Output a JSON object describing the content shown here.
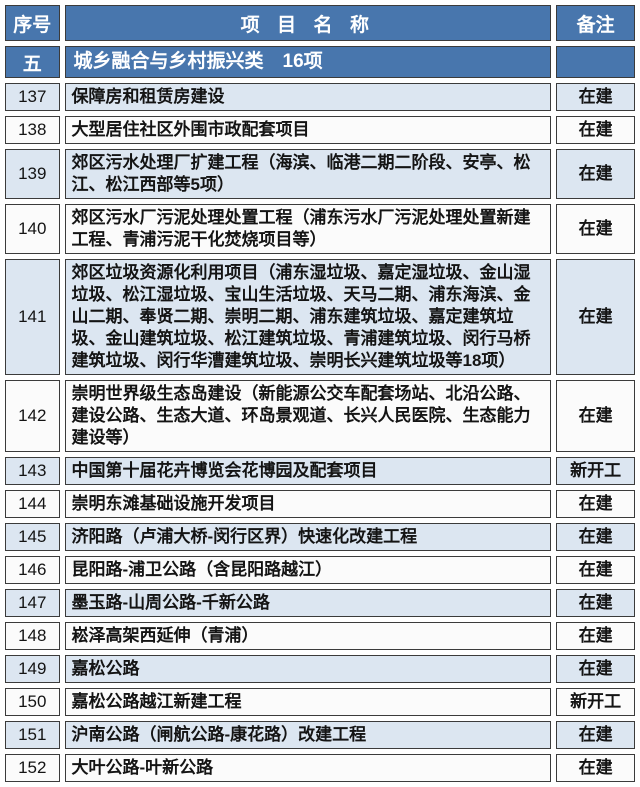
{
  "table": {
    "headers": {
      "seq": "序号",
      "name": "项 目 名 称",
      "remark": "备注"
    },
    "section": {
      "seq": "五",
      "title": "城乡融合与乡村振兴类　16项",
      "remark": ""
    },
    "rows": [
      {
        "seq": "137",
        "name": "保障房和租赁房建设",
        "remark": "在建"
      },
      {
        "seq": "138",
        "name": "大型居住社区外围市政配套项目",
        "remark": "在建"
      },
      {
        "seq": "139",
        "name": "郊区污水处理厂扩建工程（海滨、临港二期二阶段、安亭、松江、松江西部等5项）",
        "remark": "在建"
      },
      {
        "seq": "140",
        "name": "郊区污水厂污泥处理处置工程（浦东污水厂污泥处理处置新建工程、青浦污泥干化焚烧项目等）",
        "remark": "在建"
      },
      {
        "seq": "141",
        "name": "郊区垃圾资源化利用项目（浦东湿垃圾、嘉定湿垃圾、金山湿垃圾、松江湿垃圾、宝山生活垃圾、天马二期、浦东海滨、金山二期、奉贤二期、崇明二期、浦东建筑垃圾、嘉定建筑垃圾、金山建筑垃圾、松江建筑垃圾、青浦建筑垃圾、闵行马桥建筑垃圾、闵行华漕建筑垃圾、崇明长兴建筑垃圾等18项）",
        "remark": "在建"
      },
      {
        "seq": "142",
        "name": "崇明世界级生态岛建设（新能源公交车配套场站、北沿公路、建设公路、生态大道、环岛景观道、长兴人民医院、生态能力建设等）",
        "remark": "在建"
      },
      {
        "seq": "143",
        "name": "中国第十届花卉博览会花博园及配套项目",
        "remark": "新开工"
      },
      {
        "seq": "144",
        "name": "崇明东滩基础设施开发项目",
        "remark": "在建"
      },
      {
        "seq": "145",
        "name": "济阳路（卢浦大桥-闵行区界）快速化改建工程",
        "remark": "在建"
      },
      {
        "seq": "146",
        "name": "昆阳路-浦卫公路（含昆阳路越江）",
        "remark": "在建"
      },
      {
        "seq": "147",
        "name": "墨玉路-山周公路-千新公路",
        "remark": "在建"
      },
      {
        "seq": "148",
        "name": "崧泽高架西延伸（青浦）",
        "remark": "在建"
      },
      {
        "seq": "149",
        "name": "嘉松公路",
        "remark": "在建"
      },
      {
        "seq": "150",
        "name": "嘉松公路越江新建工程",
        "remark": "新开工"
      },
      {
        "seq": "151",
        "name": "沪南公路（闸航公路-康花路）改建工程",
        "remark": "在建"
      },
      {
        "seq": "152",
        "name": "大叶公路-叶新公路",
        "remark": "在建"
      }
    ],
    "colors": {
      "header_bg": "#4876AD",
      "stripe_bg": "#DCE6F1",
      "row_bg": "#FBFBFB",
      "border": "#3B3B3B",
      "header_text": "#FFFFFF",
      "body_text": "#141414"
    }
  }
}
